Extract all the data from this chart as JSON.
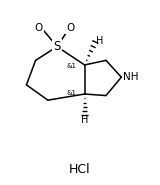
{
  "bg_color": "#ffffff",
  "line_color": "#000000",
  "text_color": "#000000",
  "figsize": [
    1.6,
    1.85
  ],
  "dpi": 100,
  "hcl_label": "HCl",
  "s_label": "S",
  "nh_label": "NH",
  "o1_label": "O",
  "o2_label": "O",
  "stereo1_label": "&1",
  "stereo2_label": "&1",
  "h1_label": "H",
  "h2_label": "H",
  "lw": 1.1
}
